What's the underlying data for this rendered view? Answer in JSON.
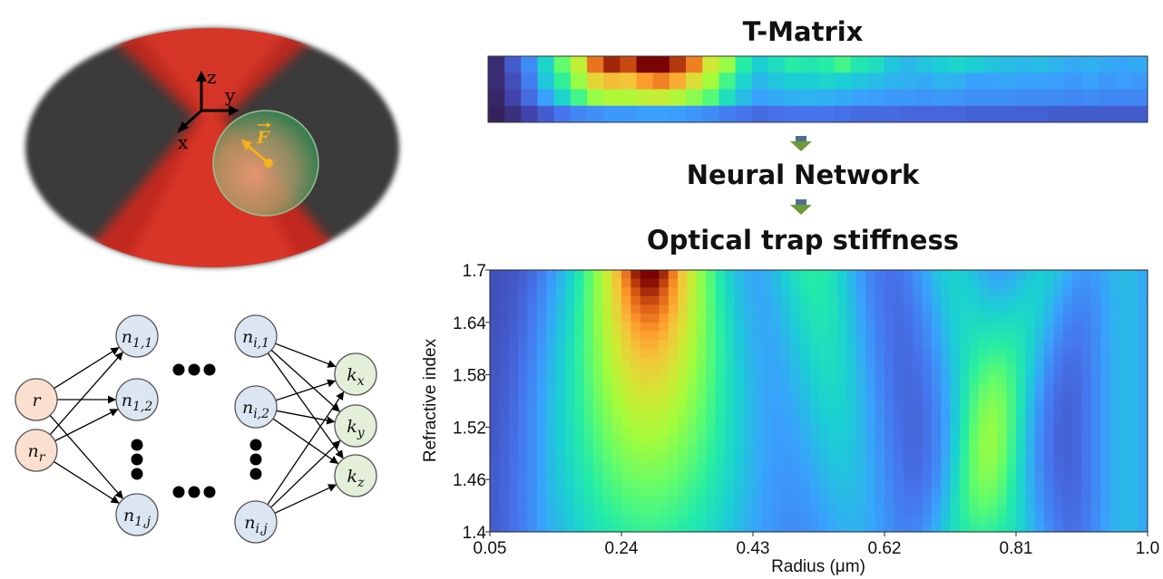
{
  "titles": {
    "t_matrix": "T-Matrix",
    "neural_network": "Neural Network",
    "optical_trap_stiffness": "Optical trap stiffness"
  },
  "trap_illustration": {
    "axes": {
      "z": "z",
      "y": "y",
      "x": "x"
    },
    "force_label": "F",
    "colors": {
      "beam": "#e02a1a",
      "background_ellipse": "#3b3b3b",
      "particle": "#7fb88a",
      "force": "#f3b21b"
    }
  },
  "network": {
    "input_nodes": [
      "r",
      "n_r"
    ],
    "hidden_first_layer": [
      "n_{1,1}",
      "n_{1,2}",
      "n_{1,j}"
    ],
    "hidden_last_layer": [
      "n_{i,1}",
      "n_{i,2}",
      "n_{i,j}"
    ],
    "output_nodes": [
      "k_x",
      "k_y",
      "k_z"
    ],
    "colors": {
      "input": "#fbe0cf",
      "hidden": "#dce6f2",
      "output": "#e3efd9"
    }
  },
  "chart_data": {
    "type": "heatmap",
    "title": "Optical trap stiffness",
    "xlabel": "Radius (μm)",
    "ylabel": "Refractive index",
    "x_ticks": [
      "0.05",
      "0.24",
      "0.43",
      "0.62",
      "0.81",
      "1.0"
    ],
    "y_ticks": [
      "1.4",
      "1.46",
      "1.52",
      "1.58",
      "1.64",
      "1.7"
    ],
    "xlim": [
      0.05,
      1.0
    ],
    "ylim": [
      1.4,
      1.7
    ],
    "colormap": "turbo",
    "peak": {
      "x": 0.28,
      "y": 1.7
    }
  },
  "t_matrix_strip": {
    "colormap": "turbo",
    "rows": 4
  }
}
